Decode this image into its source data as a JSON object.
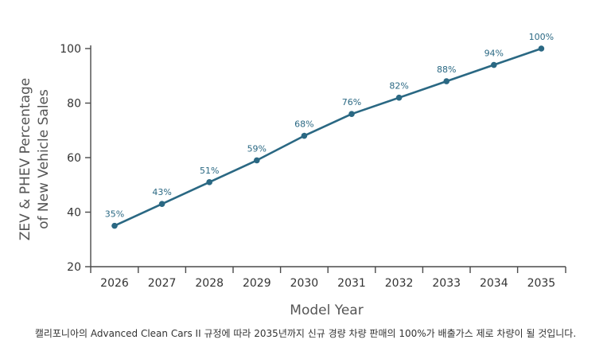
{
  "chart_data": {
    "type": "line",
    "title": "",
    "xlabel": "Model Year",
    "ylabel": [
      "ZEV & PHEV Percentage",
      "of New Vehicle Sales"
    ],
    "categories": [
      "2026",
      "2027",
      "2028",
      "2029",
      "2030",
      "2031",
      "2032",
      "2033",
      "2034",
      "2035"
    ],
    "series": [
      {
        "name": "ZEV & PHEV Percentage",
        "values": [
          35,
          43,
          51,
          59,
          68,
          76,
          82,
          88,
          94,
          100
        ],
        "labels": [
          "35%",
          "43%",
          "51%",
          "59%",
          "68%",
          "76%",
          "82%",
          "88%",
          "94%",
          "100%"
        ]
      }
    ],
    "ylim": [
      20,
      100
    ],
    "yticks": [
      "20",
      "40",
      "60",
      "80",
      "100"
    ],
    "grid": false,
    "line_color": "#2a6883",
    "label_color": "#2a6883",
    "axis_color": "#4a4a4a"
  },
  "caption": "캘리포니아의 Advanced Clean Cars II 규정에 따라 2035년까지 신규 경량 차량 판매의 100%가 배출가스 제로 차량이 될 것입니다."
}
